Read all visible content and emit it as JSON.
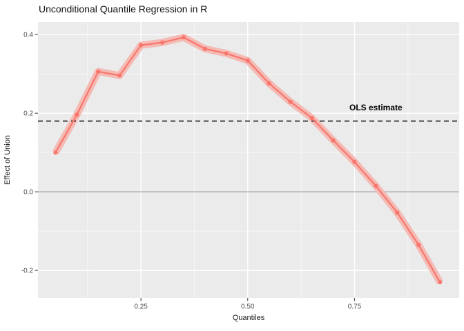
{
  "chart_data": {
    "type": "line",
    "title": "Unconditional Quantile Regression in R",
    "xlabel": "Quantiles",
    "ylabel": "Effect of Union",
    "x": [
      0.05,
      0.1,
      0.15,
      0.2,
      0.25,
      0.3,
      0.35,
      0.4,
      0.45,
      0.5,
      0.55,
      0.6,
      0.65,
      0.7,
      0.75,
      0.8,
      0.85,
      0.9,
      0.95
    ],
    "values": [
      0.1,
      0.196,
      0.306,
      0.296,
      0.373,
      0.38,
      0.393,
      0.364,
      0.352,
      0.334,
      0.276,
      0.229,
      0.188,
      0.131,
      0.076,
      0.015,
      -0.053,
      -0.135,
      -0.23
    ],
    "ribbon_halfwidth": 0.009,
    "xlim": [
      0.009,
      0.995
    ],
    "ylim": [
      -0.27,
      0.432
    ],
    "x_ticks": {
      "values": [
        0.25,
        0.5,
        0.75
      ],
      "labels": [
        "0.25",
        "0.50",
        "0.75"
      ]
    },
    "y_ticks": {
      "values": [
        -0.2,
        0.0,
        0.2,
        0.4
      ],
      "labels": [
        "-0.2",
        "0.0",
        "0.2",
        "0.4"
      ]
    },
    "x_minor": [
      0.125,
      0.375,
      0.625,
      0.875
    ],
    "y_minor": [
      -0.1,
      0.1,
      0.3
    ],
    "grid": true,
    "legend": "none",
    "zero_line": 0,
    "hline": {
      "value": 0.18,
      "style": "dashed"
    },
    "annotation": {
      "text": "OLS estimate",
      "x": 0.8,
      "y": 0.207
    },
    "colors": {
      "line": "#F8766D",
      "point": "#F8766D",
      "ribbon": "#F4BAB4",
      "panel_bg": "#EBEBEB",
      "grid_major": "#FFFFFF",
      "grid_minor": "rgba(255,255,255,0.55)",
      "zero_line": "#A6A6A6",
      "hline": "#1A1A1A",
      "tick_mark": "#333333",
      "tick_text": "#4D4D4D",
      "annotation_text": "#000000"
    }
  }
}
